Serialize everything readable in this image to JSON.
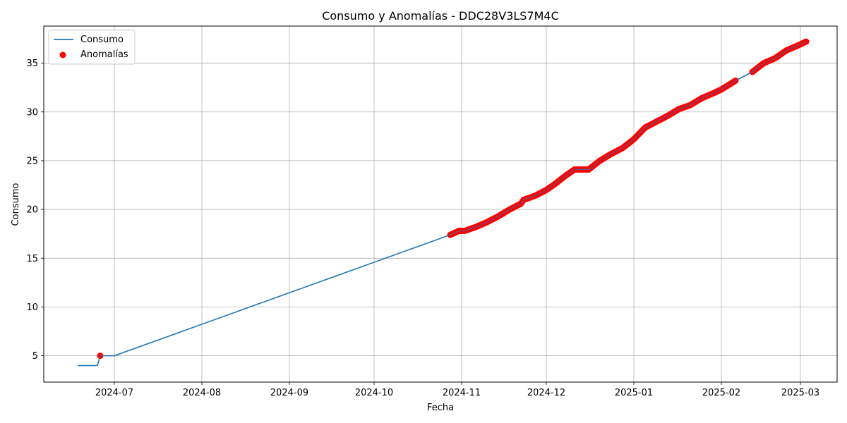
{
  "chart_data": {
    "type": "line",
    "title": "Consumo y Anomalías - DDC28V3LS7M4C",
    "xlabel": "Fecha",
    "ylabel": "Consumo",
    "x_range": [
      "2024-06-06",
      "2025-03-14"
    ],
    "ylim": [
      2.3,
      38.8
    ],
    "x_ticks": [
      {
        "date": "2024-07-01",
        "label": "2024-07"
      },
      {
        "date": "2024-08-01",
        "label": "2024-08"
      },
      {
        "date": "2024-09-01",
        "label": "2024-09"
      },
      {
        "date": "2024-10-01",
        "label": "2024-10"
      },
      {
        "date": "2024-11-01",
        "label": "2024-11"
      },
      {
        "date": "2024-12-01",
        "label": "2024-12"
      },
      {
        "date": "2025-01-01",
        "label": "2025-01"
      },
      {
        "date": "2025-02-01",
        "label": "2025-02"
      },
      {
        "date": "2025-03-01",
        "label": "2025-03"
      }
    ],
    "y_ticks": [
      5,
      10,
      15,
      20,
      25,
      30,
      35
    ],
    "grid": true,
    "legend_position": "top-left",
    "series": [
      {
        "name": "Consumo",
        "kind": "line",
        "color": "#1f77b4",
        "points": [
          [
            "2024-06-18",
            4.0
          ],
          [
            "2024-06-25",
            4.0
          ],
          [
            "2024-06-26",
            5.0
          ],
          [
            "2024-07-01",
            5.0
          ],
          [
            "2024-10-28",
            17.4
          ],
          [
            "2024-10-31",
            17.8
          ],
          [
            "2024-11-02",
            17.8
          ],
          [
            "2024-11-06",
            18.2
          ],
          [
            "2024-11-10",
            18.7
          ],
          [
            "2024-11-14",
            19.3
          ],
          [
            "2024-11-18",
            20.0
          ],
          [
            "2024-11-22",
            20.6
          ],
          [
            "2024-11-23",
            21.0
          ],
          [
            "2024-11-27",
            21.4
          ],
          [
            "2024-12-01",
            22.0
          ],
          [
            "2024-12-04",
            22.6
          ],
          [
            "2024-12-08",
            23.5
          ],
          [
            "2024-12-11",
            24.1
          ],
          [
            "2024-12-16",
            24.1
          ],
          [
            "2024-12-20",
            25.0
          ],
          [
            "2024-12-24",
            25.7
          ],
          [
            "2024-12-28",
            26.3
          ],
          [
            "2025-01-01",
            27.2
          ],
          [
            "2025-01-05",
            28.4
          ],
          [
            "2025-01-09",
            29.0
          ],
          [
            "2025-01-13",
            29.6
          ],
          [
            "2025-01-17",
            30.3
          ],
          [
            "2025-01-21",
            30.7
          ],
          [
            "2025-01-25",
            31.4
          ],
          [
            "2025-01-29",
            31.9
          ],
          [
            "2025-02-01",
            32.3
          ],
          [
            "2025-02-06",
            33.2
          ],
          [
            "2025-02-12",
            34.1
          ],
          [
            "2025-02-16",
            35.0
          ],
          [
            "2025-02-20",
            35.5
          ],
          [
            "2025-02-24",
            36.3
          ],
          [
            "2025-02-28",
            36.8
          ],
          [
            "2025-03-03",
            37.2
          ]
        ]
      },
      {
        "name": "Anomalías",
        "kind": "scatter",
        "color": "#ff0000",
        "segments": [
          {
            "start": "2024-10-28",
            "end": "2025-02-06"
          },
          {
            "start": "2025-02-12",
            "end": "2025-03-03"
          }
        ],
        "points": [
          [
            "2024-06-26",
            5.0
          ]
        ]
      }
    ]
  }
}
